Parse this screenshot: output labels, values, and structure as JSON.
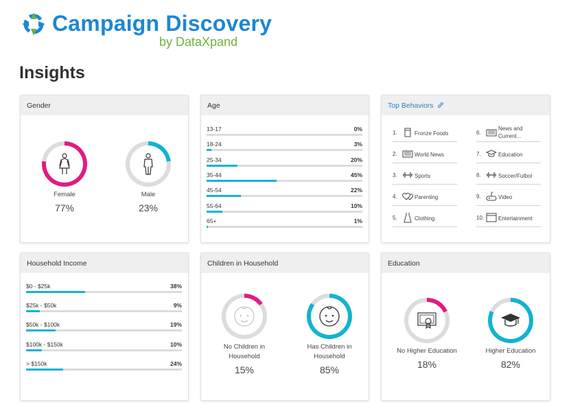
{
  "brand": {
    "title": "Campaign Discovery",
    "subtitle": "by DataXpand",
    "colors": {
      "blue": "#1d87d4",
      "green": "#6db33f"
    }
  },
  "page_title": "Insights",
  "colors": {
    "pink": "#e01b84",
    "cyan": "#12b3d2",
    "track": "#dcdcdc"
  },
  "gender": {
    "title": "Gender",
    "items": [
      {
        "label": "Female",
        "pct_text": "77%",
        "value": 77,
        "color": "#e01b84",
        "icon": "female-icon"
      },
      {
        "label": "Male",
        "pct_text": "23%",
        "value": 23,
        "color": "#12b3d2",
        "icon": "male-icon"
      }
    ]
  },
  "age": {
    "title": "Age",
    "rows": [
      {
        "label": "13-17",
        "value_text": "0%",
        "value": 0
      },
      {
        "label": "18-24",
        "value_text": "3%",
        "value": 3
      },
      {
        "label": "25-34",
        "value_text": "20%",
        "value": 20
      },
      {
        "label": "35-44",
        "value_text": "45%",
        "value": 45
      },
      {
        "label": "45-54",
        "value_text": "22%",
        "value": 22
      },
      {
        "label": "55-64",
        "value_text": "10%",
        "value": 10
      },
      {
        "label": "65+",
        "value_text": "1%",
        "value": 1
      }
    ]
  },
  "behaviors": {
    "title": "Top Behaviors",
    "items": [
      {
        "num": "1.",
        "label": "Fronze Foods",
        "icon": "frozen-food-icon"
      },
      {
        "num": "2.",
        "label": "World News",
        "icon": "newspaper-icon"
      },
      {
        "num": "3.",
        "label": "Sports",
        "icon": "dumbbell-icon"
      },
      {
        "num": "4.",
        "label": "Parenting",
        "icon": "hearts-icon"
      },
      {
        "num": "5.",
        "label": "Clothing",
        "icon": "dress-icon"
      },
      {
        "num": "6.",
        "label": "News and Current...",
        "icon": "newspaper-icon"
      },
      {
        "num": "7.",
        "label": "Education",
        "icon": "graduation-cap-icon"
      },
      {
        "num": "8.",
        "label": "Soccer/Futbol",
        "icon": "dumbbell-icon"
      },
      {
        "num": "9.",
        "label": "Video",
        "icon": "gamepad-icon"
      },
      {
        "num": "10.",
        "label": "Entertainment",
        "icon": "browser-window-icon"
      }
    ]
  },
  "income": {
    "title": "Household Income",
    "rows": [
      {
        "label": "$0 - $25k",
        "value_text": "38%",
        "value": 38
      },
      {
        "label": "$25k - $50k",
        "value_text": "9%",
        "value": 9
      },
      {
        "label": "$50k - $100k",
        "value_text": "19%",
        "value": 19
      },
      {
        "label": "$100k - $150k",
        "value_text": "10%",
        "value": 10
      },
      {
        "label": "> $150k",
        "value_text": "24%",
        "value": 24
      }
    ]
  },
  "children": {
    "title": "Children in Household",
    "items": [
      {
        "label": "No Children in Household",
        "pct_text": "15%",
        "value": 15,
        "color": "#e01b84",
        "icon": "baby-face-faded-icon"
      },
      {
        "label": "Has Children in Household",
        "pct_text": "85%",
        "value": 85,
        "color": "#12b3d2",
        "icon": "baby-face-icon"
      }
    ]
  },
  "education": {
    "title": "Education",
    "items": [
      {
        "label": "No Higher Education",
        "pct_text": "18%",
        "value": 18,
        "color": "#e01b84",
        "icon": "certificate-icon"
      },
      {
        "label": "Higher Education",
        "pct_text": "82%",
        "value": 82,
        "color": "#12b3d2",
        "icon": "graduation-cap-icon"
      }
    ]
  }
}
